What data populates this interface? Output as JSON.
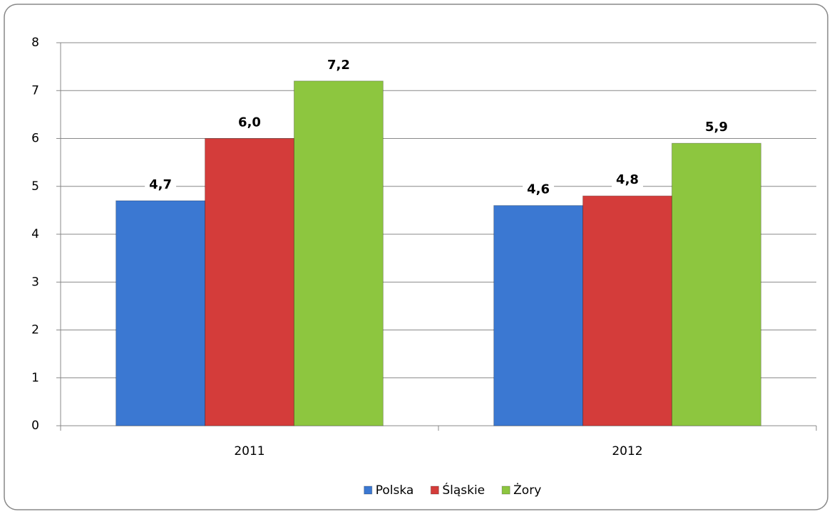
{
  "chart_data": {
    "type": "bar",
    "categories": [
      "2011",
      "2012"
    ],
    "series": [
      {
        "name": "Polska",
        "color": "#3b78d2",
        "values": [
          4.7,
          4.6
        ],
        "value_labels": [
          "4,7",
          "4,6"
        ]
      },
      {
        "name": "Śląskie",
        "color": "#d43c3a",
        "values": [
          6.0,
          4.8
        ],
        "value_labels": [
          "6,0",
          "4,8"
        ]
      },
      {
        "name": "Żory",
        "color": "#8dc63f",
        "values": [
          7.2,
          5.9
        ],
        "value_labels": [
          "7,2",
          "5,9"
        ]
      }
    ],
    "ylim": [
      0,
      8
    ],
    "yticks": [
      0,
      1,
      2,
      3,
      4,
      5,
      6,
      7,
      8
    ],
    "grid": true,
    "legend": "bottom"
  }
}
